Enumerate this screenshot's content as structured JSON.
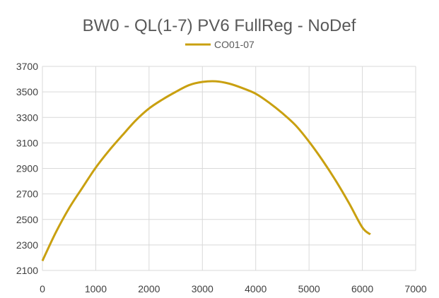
{
  "chart_data": {
    "type": "line",
    "title": "BW0 - QL(1-7) PV6 FullReg - NoDef",
    "xlabel": "",
    "ylabel": "",
    "xlim": [
      0,
      7000
    ],
    "ylim": [
      2100,
      3700
    ],
    "x_ticks": [
      0,
      1000,
      2000,
      3000,
      4000,
      5000,
      6000,
      7000
    ],
    "y_ticks": [
      2100,
      2300,
      2500,
      2700,
      2900,
      3100,
      3300,
      3500,
      3700
    ],
    "grid": "horizontal",
    "legend": "top-center",
    "series": [
      {
        "name": "CO01-07",
        "color": "#C9A010",
        "x": [
          0,
          250,
          500,
          750,
          1000,
          1250,
          1500,
          1750,
          2000,
          2250,
          2500,
          2750,
          3000,
          3250,
          3500,
          3750,
          4000,
          4250,
          4500,
          4750,
          5000,
          5250,
          5500,
          5750,
          6000,
          6150
        ],
        "y": [
          2175,
          2397,
          2588,
          2749,
          2906,
          3040,
          3160,
          3276,
          3370,
          3440,
          3500,
          3553,
          3578,
          3583,
          3565,
          3530,
          3486,
          3416,
          3333,
          3237,
          3110,
          2965,
          2805,
          2628,
          2437,
          2383
        ]
      }
    ]
  }
}
